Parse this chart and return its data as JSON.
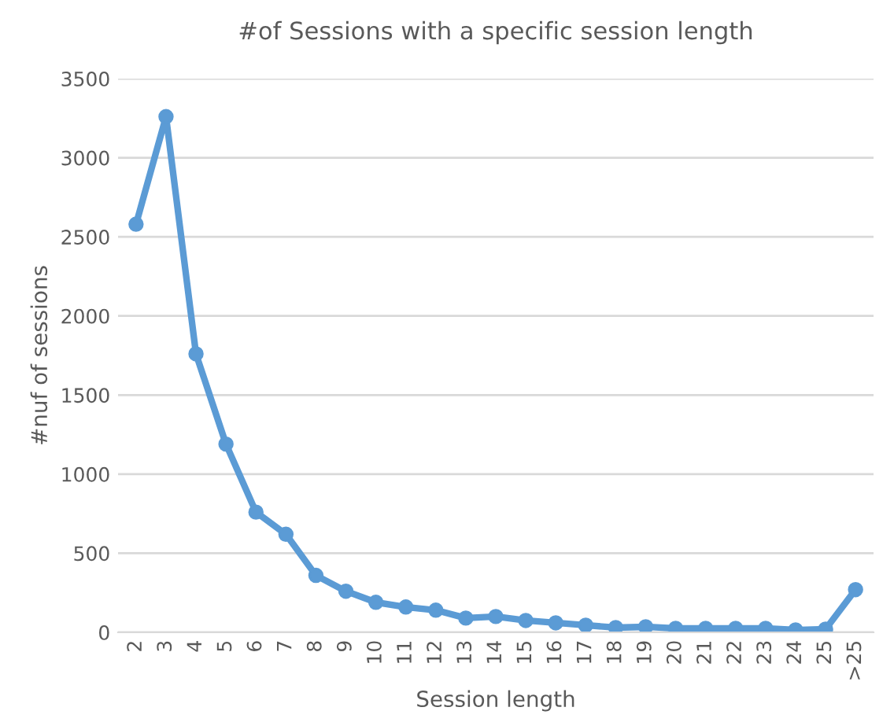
{
  "chart_data": {
    "type": "line",
    "title": "#of Sessions with a specific session length",
    "xlabel": "Session length",
    "ylabel": "#nuf of sessions",
    "categories": [
      "2",
      "3",
      "4",
      "5",
      "6",
      "7",
      "8",
      "9",
      "10",
      "11",
      "12",
      "13",
      "14",
      "15",
      "16",
      "17",
      "18",
      "19",
      "20",
      "21",
      "22",
      "23",
      "24",
      "25",
      ">25"
    ],
    "series": [
      {
        "color": "#5b9bd5",
        "values": [
          2580,
          3260,
          1760,
          1190,
          760,
          620,
          360,
          260,
          190,
          160,
          140,
          90,
          100,
          75,
          60,
          45,
          30,
          35,
          25,
          25,
          25,
          25,
          15,
          20,
          270
        ]
      }
    ],
    "ylim": [
      0,
      3500
    ],
    "yticks": [
      0,
      500,
      1000,
      1500,
      2000,
      2500,
      3000,
      3500
    ],
    "grid": "y",
    "marker": "circle",
    "line_style": "solid"
  }
}
